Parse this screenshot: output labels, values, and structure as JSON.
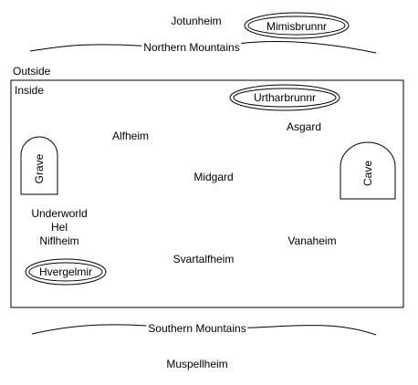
{
  "outside": "Outside",
  "inside": "Inside",
  "regions": {
    "jotunheim": "Jotunheim",
    "alfheim": "Alfheim",
    "asgard": "Asgard",
    "midgard": "Midgard",
    "underworld": "Underworld",
    "hel": "Hel",
    "niflheim": "Niflheim",
    "vanaheim": "Vanaheim",
    "svartalfheim": "Svartalfheim",
    "muspellheim": "Muspellheim"
  },
  "mountains": {
    "north": "Northern Mountains",
    "south": "Southern Mountains"
  },
  "wells": {
    "mimisbrunnr": "Mimisbrunnr",
    "urtharbrunnr": "Urtharbrunnr",
    "hvergelmir": "Hvergelmir"
  },
  "arches": {
    "grave": "Grave",
    "cave": "Cave"
  }
}
